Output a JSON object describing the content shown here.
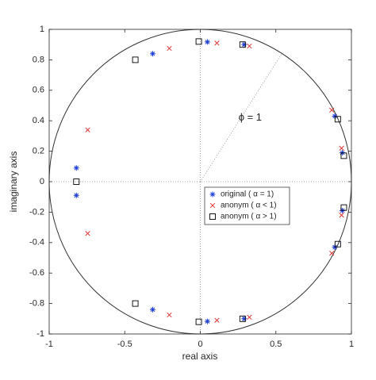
{
  "chart_data": {
    "type": "scatter",
    "xlabel": "real axis",
    "ylabel": "imaginary axis",
    "xlim": [
      -1,
      1
    ],
    "ylim": [
      -1,
      1
    ],
    "xticks": [
      -1,
      -0.5,
      0,
      0.5,
      1
    ],
    "yticks": [
      -1,
      -0.8,
      -0.6,
      -0.4,
      -0.2,
      0,
      0.2,
      0.4,
      0.6,
      0.8,
      1
    ],
    "unit_circle": true,
    "zero_lines": true,
    "annotation": {
      "text": "ϕ = 1",
      "angle": 1,
      "x": 0.33,
      "y": 0.42
    },
    "legend": "center-right",
    "series": [
      {
        "name": "original (  α = 1)",
        "color": "#1f3fd6",
        "marker": "star",
        "x": [
          0.047,
          0.29,
          -0.315,
          0.89,
          0.94,
          -0.82,
          0.047,
          0.29,
          -0.315,
          0.89,
          0.94,
          -0.82
        ],
        "values": [
          0.917,
          0.9,
          0.84,
          0.43,
          0.19,
          0.09,
          -0.917,
          -0.9,
          -0.84,
          -0.43,
          -0.19,
          -0.09
        ]
      },
      {
        "name": "anonym (  α < 1)",
        "color": "#e03030",
        "marker": "cross",
        "x": [
          0.11,
          0.325,
          -0.205,
          0.87,
          0.935,
          -0.745,
          0.11,
          0.325,
          -0.205,
          0.87,
          0.935,
          -0.745
        ],
        "values": [
          0.91,
          0.89,
          0.875,
          0.47,
          0.22,
          0.34,
          -0.91,
          -0.89,
          -0.875,
          -0.47,
          -0.22,
          -0.34
        ]
      },
      {
        "name": "anonym (  α > 1)",
        "color": "#000000",
        "marker": "square",
        "x": [
          -0.01,
          0.28,
          -0.43,
          0.91,
          0.95,
          -0.82,
          -0.01,
          0.28,
          -0.43,
          0.91,
          0.95
        ],
        "values": [
          0.92,
          0.9,
          0.8,
          0.41,
          0.17,
          0,
          -0.92,
          -0.9,
          -0.8,
          -0.41,
          -0.17
        ]
      }
    ]
  }
}
